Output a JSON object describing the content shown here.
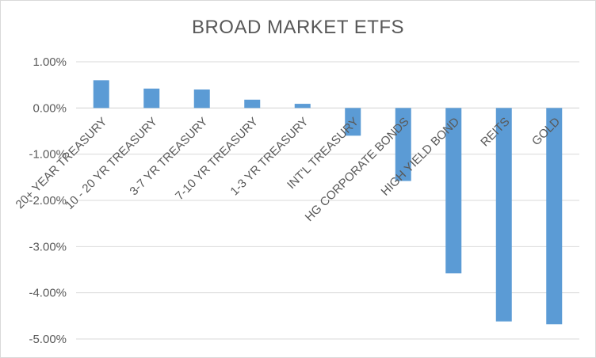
{
  "chart_data": {
    "type": "bar",
    "title": "BROAD MARKET ETFS",
    "xlabel": "",
    "ylabel": "",
    "categories": [
      "20+ YEAR TREASURY",
      "10 - 20 YR TREASURY",
      "3-7 YR TREASURY",
      "7-10 YR TREASURY",
      "1-3 YR TREASURY",
      "INT'L TREASURY",
      "HG CORPORATE BONDS",
      "HIGH YIELD BOND",
      "REITS",
      "GOLD"
    ],
    "values": [
      0.6,
      0.42,
      0.4,
      0.18,
      0.09,
      -0.6,
      -1.58,
      -3.58,
      -4.62,
      -4.68
    ],
    "ylim": [
      -5,
      1
    ],
    "yticks": [
      "1.00%",
      "0.00%",
      "-1.00%",
      "-2.00%",
      "-3.00%",
      "-4.00%",
      "-5.00%"
    ],
    "grid": true,
    "legend": "none",
    "bar_color": "#5b9bd5"
  }
}
